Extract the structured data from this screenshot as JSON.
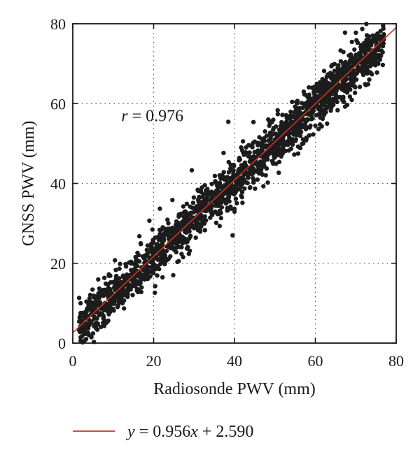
{
  "chart_data": {
    "type": "scatter",
    "xlabel": "Radiosonde PWV (mm)",
    "ylabel": "GNSS PWV (mm)",
    "xlim": [
      0,
      80
    ],
    "ylim": [
      0,
      80
    ],
    "xticks": [
      "0",
      "20",
      "40",
      "60",
      "80"
    ],
    "yticks": [
      "0",
      "20",
      "40",
      "60",
      "80"
    ],
    "grid": true,
    "grid_style": "dotted",
    "annotation": {
      "var": "r",
      "text": " = 0.976",
      "x": 12,
      "y": 57
    },
    "fit_line": {
      "slope": 0.956,
      "intercept": 2.59,
      "label_var": "y",
      "label_text": " = 0.956",
      "label_var2": "x",
      "label_text2": " + 2.590"
    },
    "scatter": {
      "x_range": [
        1.5,
        77
      ],
      "spread_sd": 2.8,
      "sample_points": [
        [
          2,
          3
        ],
        [
          3,
          7
        ],
        [
          4,
          2
        ],
        [
          5,
          9
        ],
        [
          6,
          5
        ],
        [
          8,
          10
        ],
        [
          10,
          12
        ],
        [
          12,
          11
        ],
        [
          14,
          16
        ],
        [
          16,
          18
        ],
        [
          18,
          22
        ],
        [
          20,
          21
        ],
        [
          22,
          24
        ],
        [
          24,
          26
        ],
        [
          26,
          28
        ],
        [
          28,
          30
        ],
        [
          30,
          31
        ],
        [
          32,
          34
        ],
        [
          34,
          36
        ],
        [
          36,
          37
        ],
        [
          38,
          39
        ],
        [
          40,
          42
        ],
        [
          42,
          43
        ],
        [
          44,
          46
        ],
        [
          46,
          47
        ],
        [
          48,
          49
        ],
        [
          50,
          51
        ],
        [
          52,
          54
        ],
        [
          54,
          55
        ],
        [
          56,
          57
        ],
        [
          58,
          59
        ],
        [
          60,
          62
        ],
        [
          62,
          63
        ],
        [
          64,
          65
        ],
        [
          66,
          67
        ],
        [
          68,
          69
        ],
        [
          70,
          71
        ],
        [
          72,
          71
        ],
        [
          74,
          73
        ],
        [
          76,
          71
        ]
      ],
      "color": "#1c1c1c",
      "n_points": 1800
    },
    "colors": {
      "points": "#1c1c1c",
      "fit": "#cc3322",
      "axis": "#1a1a1a",
      "grid": "#555555"
    }
  }
}
